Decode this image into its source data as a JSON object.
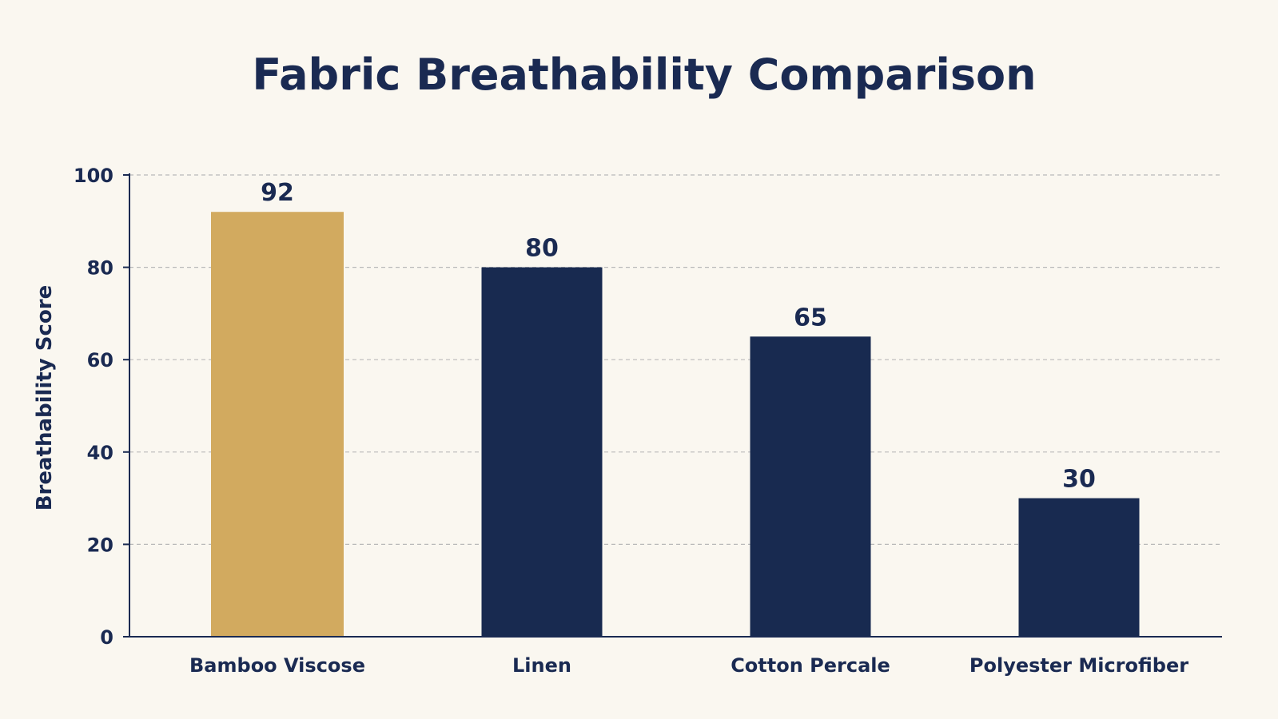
{
  "chart_data": {
    "type": "bar",
    "title": "Fabric Breathability Comparison",
    "xlabel": "",
    "ylabel": "Breathability Score",
    "categories": [
      "Bamboo Viscose",
      "Linen",
      "Cotton Percale",
      "Polyester Microfiber"
    ],
    "values": [
      92,
      80,
      65,
      30
    ],
    "value_labels": [
      "92",
      "80",
      "65",
      "30"
    ],
    "ylim": [
      0,
      100
    ],
    "yticks": [
      0,
      20,
      40,
      60,
      80,
      100
    ],
    "ytick_labels": [
      "0",
      "20",
      "40",
      "60",
      "80",
      "100"
    ],
    "grid": true,
    "legend": "none",
    "highlight_index": 0
  },
  "colors": {
    "background": "#faf7f0",
    "text": "#1a2a52",
    "bar": "#182a50",
    "highlight_bar": "#d2aa5f",
    "axis": "#1a2a52",
    "grid": "#b9b9b9"
  }
}
